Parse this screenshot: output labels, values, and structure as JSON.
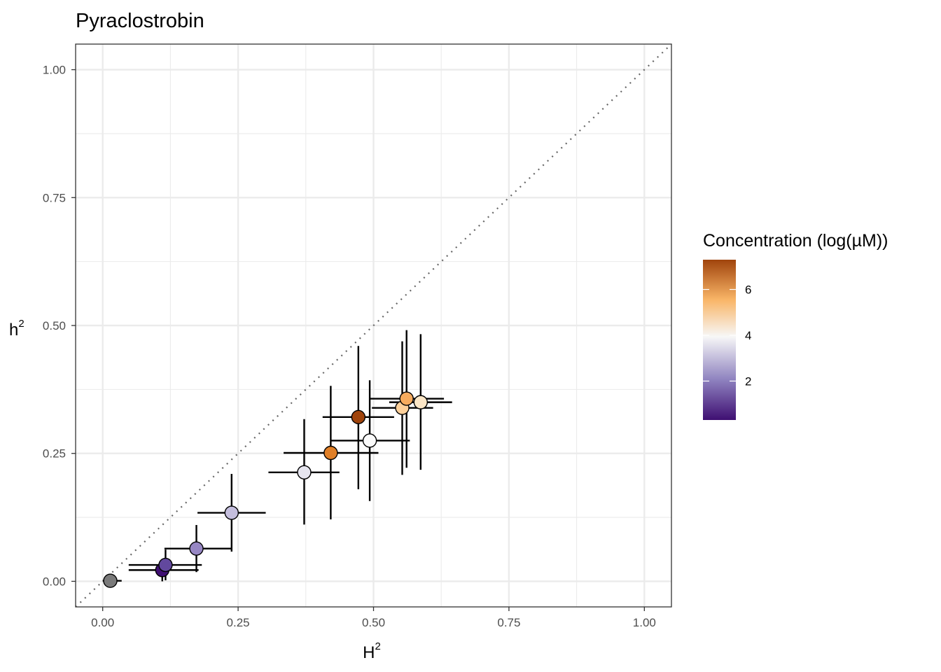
{
  "chart_data": {
    "type": "scatter",
    "title": "Pyraclostrobin",
    "xlabel": {
      "base": "H",
      "sup": "2"
    },
    "ylabel": {
      "base": "h",
      "sup": "2"
    },
    "xlim": [
      -0.05,
      1.05
    ],
    "ylim": [
      -0.05,
      1.05
    ],
    "xticks": [
      0.0,
      0.25,
      0.5,
      0.75,
      1.0
    ],
    "yticks": [
      0.0,
      0.25,
      0.5,
      0.75,
      1.0
    ],
    "xtick_labels": [
      "0.00",
      "0.25",
      "0.50",
      "0.75",
      "1.00"
    ],
    "ytick_labels": [
      "0.00",
      "0.25",
      "0.50",
      "0.75",
      "1.00"
    ],
    "grid": true,
    "reference_line": "y = x (dotted)",
    "legend": {
      "title": "Concentration (log(µM))",
      "position": "right",
      "range": [
        0.3,
        7.3
      ],
      "ticks": [
        2,
        4,
        6
      ],
      "tick_labels": [
        "2",
        "4",
        "6"
      ],
      "colors": [
        "#3f0f72",
        "#8e82bf",
        "#f7f7f7",
        "#f9b567",
        "#a0440c"
      ]
    },
    "points": [
      {
        "x": 0.014,
        "y": 0.001,
        "xlo": 0.0,
        "xhi": 0.035,
        "ylo": 0.001,
        "yhi": 0.001,
        "color": "#7a7a7a"
      },
      {
        "x": 0.11,
        "y": 0.022,
        "xlo": 0.048,
        "xhi": 0.177,
        "ylo": 0.0,
        "yhi": 0.042,
        "color": "#3f0f72"
      },
      {
        "x": 0.116,
        "y": 0.032,
        "xlo": 0.048,
        "xhi": 0.183,
        "ylo": 0.002,
        "yhi": 0.062,
        "color": "#62489e"
      },
      {
        "x": 0.173,
        "y": 0.064,
        "xlo": 0.114,
        "xhi": 0.237,
        "ylo": 0.018,
        "yhi": 0.11,
        "color": "#9787c4"
      },
      {
        "x": 0.238,
        "y": 0.134,
        "xlo": 0.175,
        "xhi": 0.301,
        "ylo": 0.058,
        "yhi": 0.21,
        "color": "#c4bedd"
      },
      {
        "x": 0.372,
        "y": 0.213,
        "xlo": 0.306,
        "xhi": 0.437,
        "ylo": 0.111,
        "yhi": 0.317,
        "color": "#e6e5ef"
      },
      {
        "x": 0.421,
        "y": 0.251,
        "xlo": 0.334,
        "xhi": 0.509,
        "ylo": 0.121,
        "yhi": 0.382,
        "color": "#e07f27"
      },
      {
        "x": 0.472,
        "y": 0.321,
        "xlo": 0.406,
        "xhi": 0.538,
        "ylo": 0.18,
        "yhi": 0.46,
        "color": "#a0440c"
      },
      {
        "x": 0.493,
        "y": 0.275,
        "xlo": 0.42,
        "xhi": 0.567,
        "ylo": 0.157,
        "yhi": 0.393,
        "color": "#fbfbfb"
      },
      {
        "x": 0.553,
        "y": 0.339,
        "xlo": 0.497,
        "xhi": 0.61,
        "ylo": 0.208,
        "yhi": 0.469,
        "color": "#fdd09a"
      },
      {
        "x": 0.561,
        "y": 0.357,
        "xlo": 0.492,
        "xhi": 0.63,
        "ylo": 0.222,
        "yhi": 0.491,
        "color": "#f6ab5e"
      },
      {
        "x": 0.587,
        "y": 0.35,
        "xlo": 0.529,
        "xhi": 0.645,
        "ylo": 0.218,
        "yhi": 0.483,
        "color": "#fde7c7"
      }
    ]
  }
}
